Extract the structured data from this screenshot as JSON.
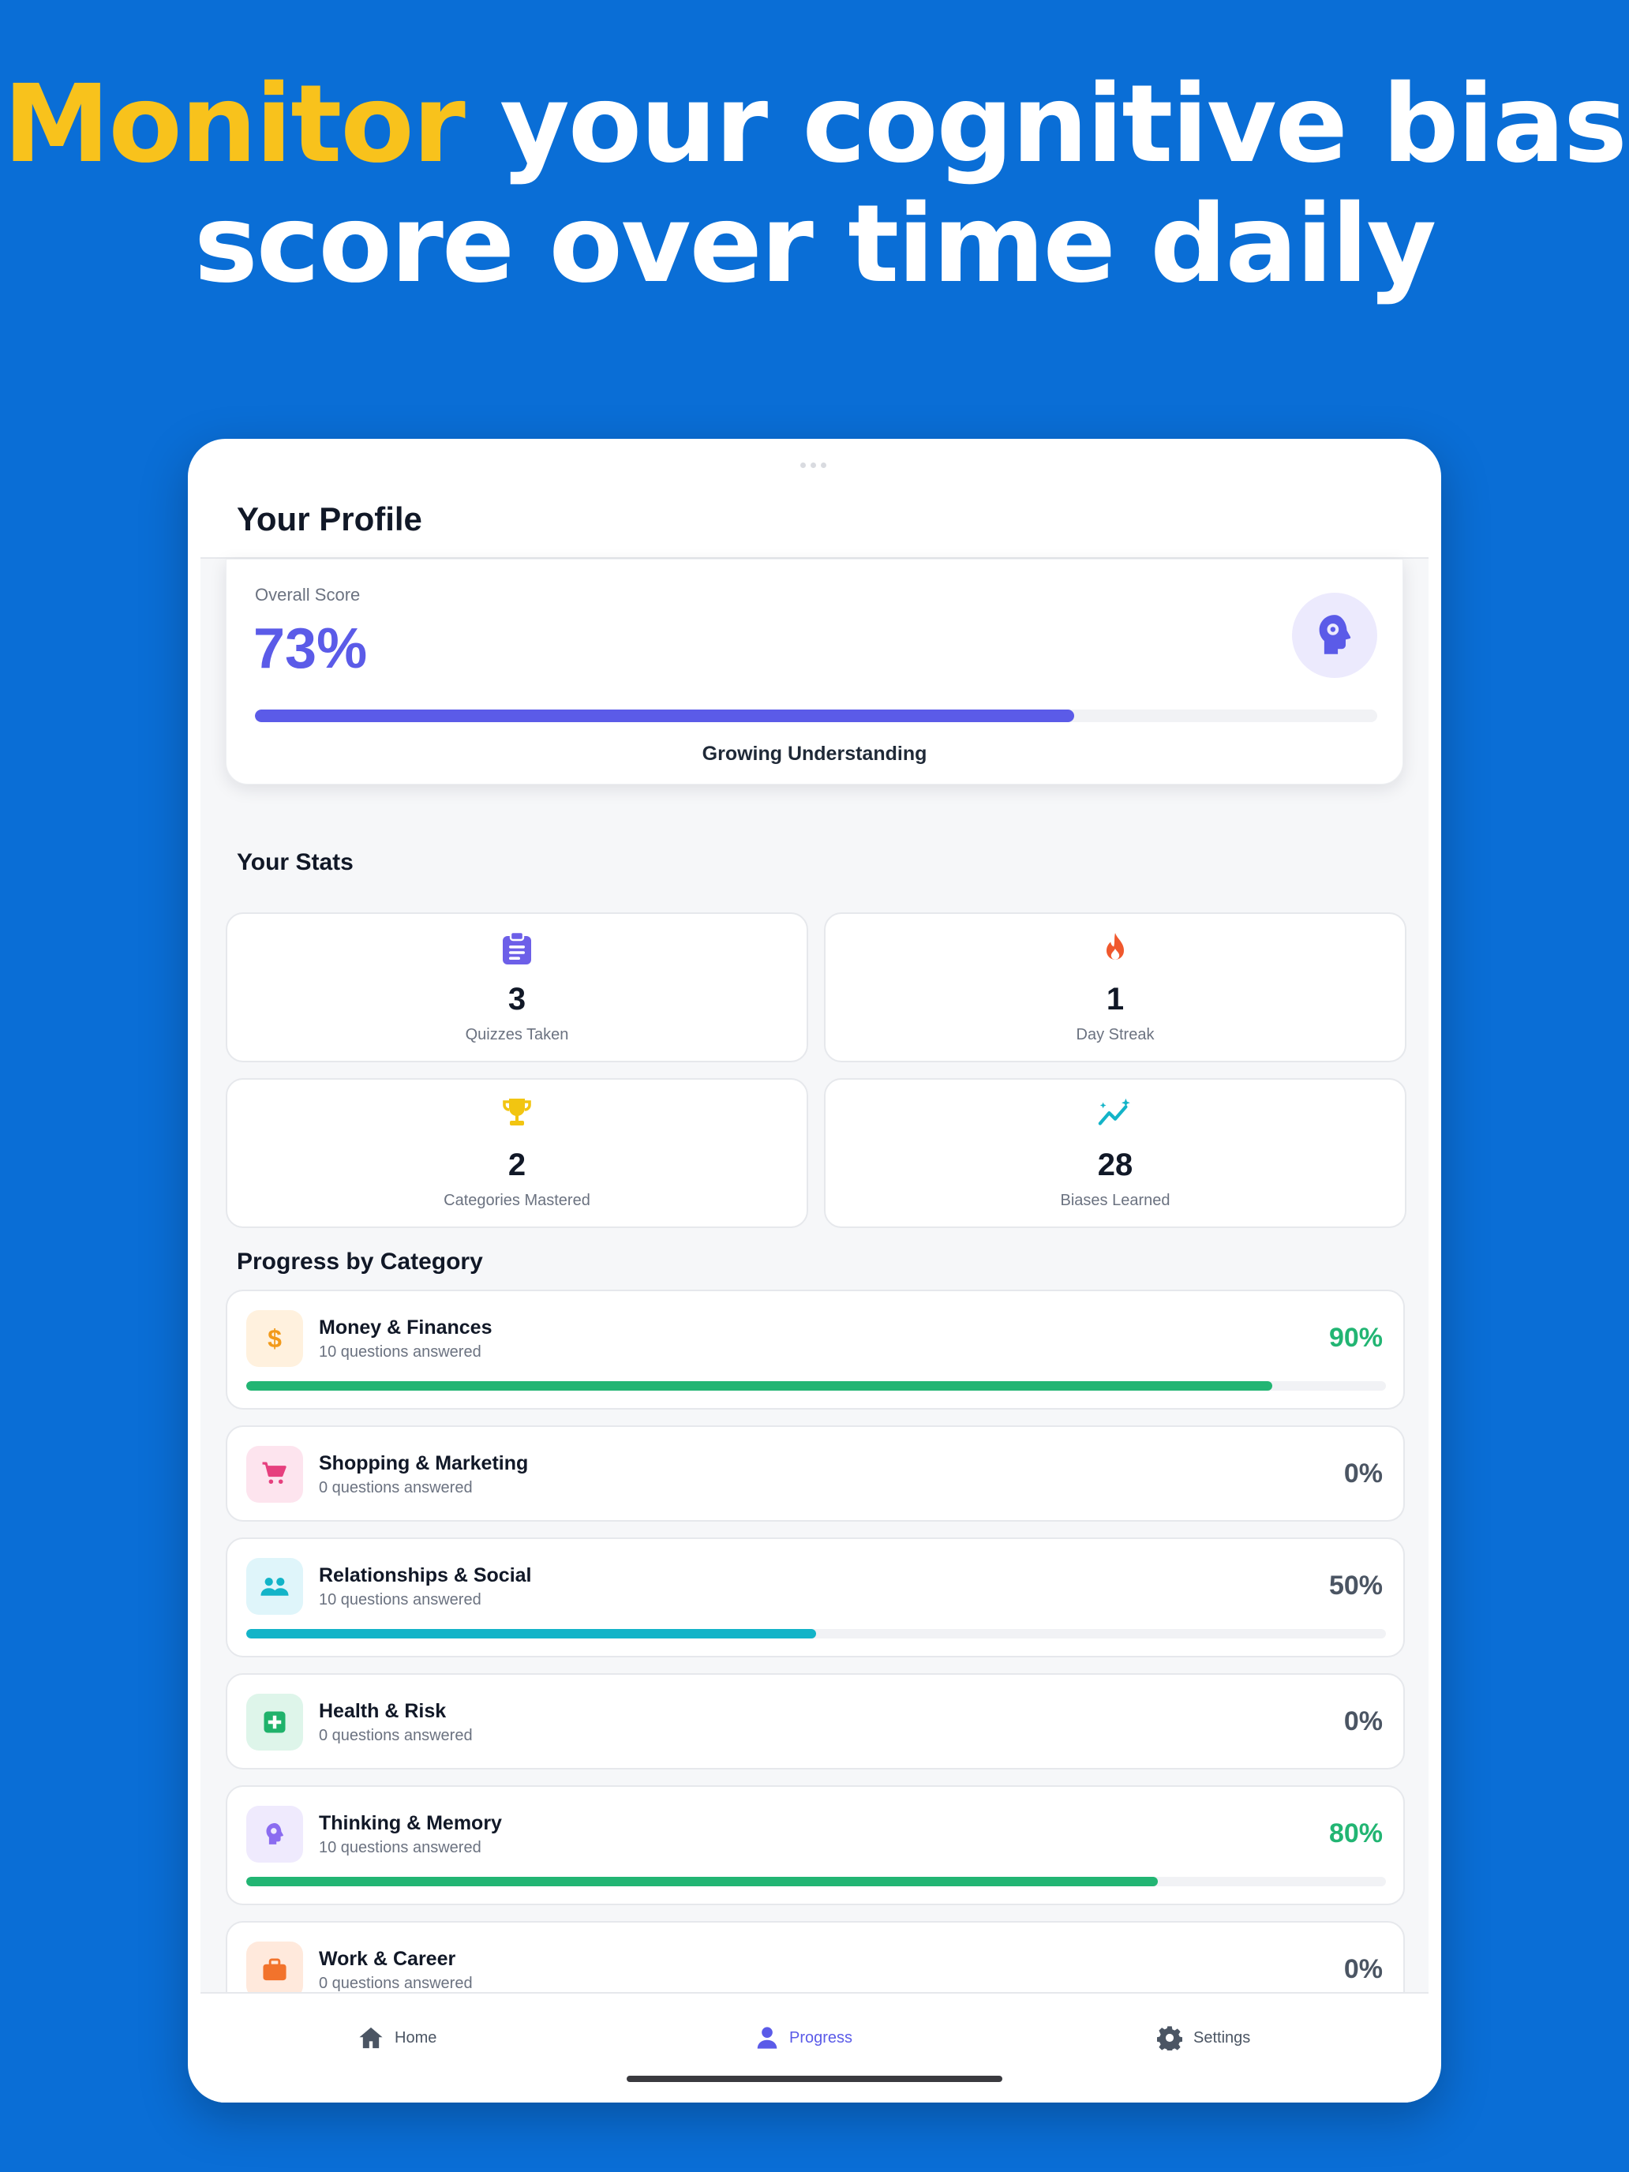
{
  "headline": {
    "accent": "Monitor",
    "line1_rest": " your cognitive bias",
    "line2": "score over time daily"
  },
  "colors": {
    "background": "#0a6ed6",
    "headline_accent": "#f8c21c",
    "primary": "#5b5be8",
    "success": "#22b573",
    "teal": "#13b4c8"
  },
  "header": {
    "title": "Your Profile"
  },
  "score": {
    "label": "Overall Score",
    "value": "73%",
    "progress": 0.73,
    "level": "Growing Understanding",
    "icon": "brain-gear-icon"
  },
  "stats": {
    "title": "Your Stats",
    "items": [
      {
        "value": "3",
        "label": "Quizzes Taken",
        "icon": "clipboard-icon"
      },
      {
        "value": "1",
        "label": "Day Streak",
        "icon": "flame-icon"
      },
      {
        "value": "2",
        "label": "Categories Mastered",
        "icon": "trophy-icon"
      },
      {
        "value": "28",
        "label": "Biases Learned",
        "icon": "sparkle-trend-icon"
      }
    ]
  },
  "categories": {
    "title": "Progress by Category",
    "items": [
      {
        "name": "Money & Finances",
        "sub": "10 questions answered",
        "percent": "90%",
        "progress": 0.9,
        "icon": "dollar-icon",
        "color": "#22b573"
      },
      {
        "name": "Shopping & Marketing",
        "sub": "0 questions answered",
        "percent": "0%",
        "progress": 0,
        "icon": "cart-icon",
        "color": "#4b5563"
      },
      {
        "name": "Relationships & Social",
        "sub": "10 questions answered",
        "percent": "50%",
        "progress": 0.5,
        "icon": "people-icon",
        "color": "#4b5563"
      },
      {
        "name": "Health & Risk",
        "sub": "0 questions answered",
        "percent": "0%",
        "progress": 0,
        "icon": "medical-plus-icon",
        "color": "#4b5563"
      },
      {
        "name": "Thinking & Memory",
        "sub": "10 questions answered",
        "percent": "80%",
        "progress": 0.8,
        "icon": "brain-icon",
        "color": "#22b573"
      },
      {
        "name": "Work & Career",
        "sub": "0 questions answered",
        "percent": "0%",
        "progress": 0,
        "icon": "briefcase-icon",
        "color": "#4b5563"
      }
    ]
  },
  "tabs": [
    {
      "label": "Home",
      "icon": "home-icon",
      "active": false
    },
    {
      "label": "Progress",
      "icon": "person-icon",
      "active": true
    },
    {
      "label": "Settings",
      "icon": "gear-icon",
      "active": false
    }
  ]
}
